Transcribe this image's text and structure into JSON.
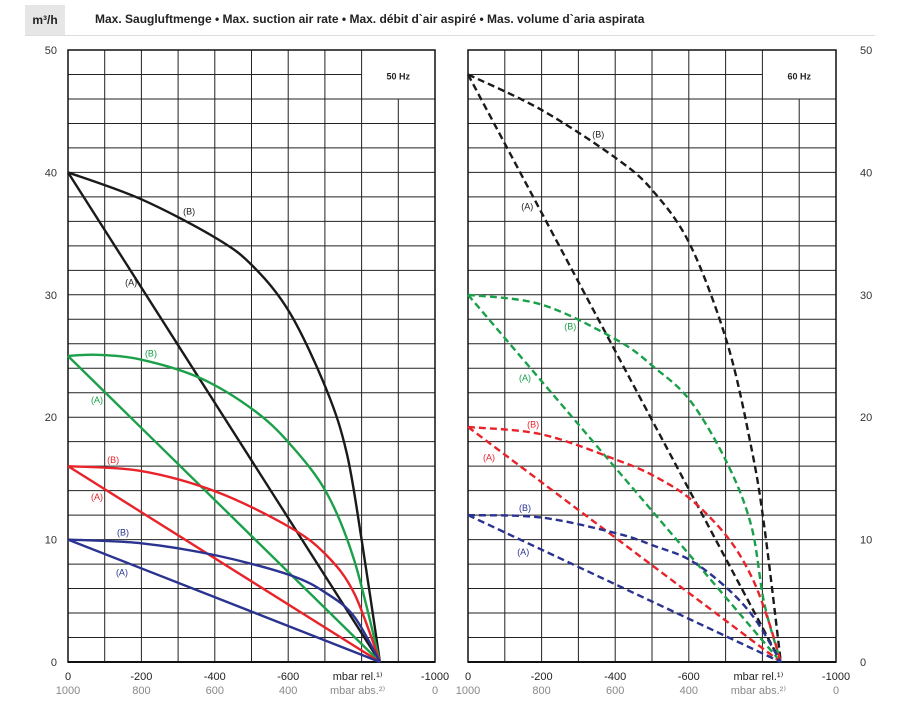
{
  "header": {
    "unit": "m³/h",
    "title": "Max. Saugluftmenge  •  Max. suction air rate  •  Max. débit d`air aspiré  •  Mas. volume d`aria aspirata"
  },
  "colors": {
    "black": "#1a1a1a",
    "green": "#1ba04a",
    "red": "#e8232a",
    "blue": "#2a3490"
  },
  "chart_data": [
    {
      "type": "line",
      "title": "50 Hz",
      "ylabel": "m³/h",
      "xlim": [
        0,
        -1000
      ],
      "ylim": [
        0,
        50
      ],
      "yticks": [
        "0",
        "10",
        "20",
        "30",
        "40",
        "50"
      ],
      "xticks_rel": [
        "0",
        "-200",
        "-400",
        "-600",
        "mbar rel.¹⁾",
        "-1000"
      ],
      "xticks_abs": [
        "1000",
        "800",
        "600",
        "400",
        "mbar abs.²⁾",
        "0"
      ],
      "grid": true,
      "line_style": "solid",
      "series": [
        {
          "name": "(A)",
          "color": "black",
          "x": [
            0,
            -850
          ],
          "y": [
            40,
            0
          ],
          "label_at": [
            -172,
            31
          ]
        },
        {
          "name": "(B)",
          "color": "black",
          "x": [
            0,
            -200,
            -405,
            -505,
            -605,
            -705,
            -760,
            -800,
            -850
          ],
          "y": [
            40,
            37.8,
            34.6,
            32.3,
            28.5,
            22.2,
            17,
            10,
            0
          ],
          "label_at": [
            -330,
            36.8
          ]
        },
        {
          "name": "(A)",
          "color": "green",
          "x": [
            0,
            -850
          ],
          "y": [
            25,
            0
          ],
          "label_at": [
            -79,
            21.4
          ]
        },
        {
          "name": "(B)",
          "color": "green",
          "x": [
            0,
            -80,
            -200,
            -360,
            -505,
            -605,
            -705,
            -780,
            -850
          ],
          "y": [
            25,
            25.1,
            24.7,
            23.2,
            20.6,
            17.8,
            13.8,
            8.3,
            0
          ],
          "label_at": [
            -226,
            25.2
          ]
        },
        {
          "name": "(A)",
          "color": "red",
          "x": [
            0,
            -850
          ],
          "y": [
            16,
            0
          ],
          "label_at": [
            -79,
            13.5
          ]
        },
        {
          "name": "(B)",
          "color": "red",
          "x": [
            0,
            -200,
            -405,
            -605,
            -705,
            -780,
            -850
          ],
          "y": [
            16,
            15.6,
            13.9,
            11,
            8.7,
            5.6,
            0
          ],
          "label_at": [
            -123,
            16.5
          ]
        },
        {
          "name": "(A)",
          "color": "blue",
          "x": [
            0,
            -850
          ],
          "y": [
            10,
            0
          ],
          "label_at": [
            -147,
            7.3
          ]
        },
        {
          "name": "(B)",
          "color": "blue",
          "x": [
            0,
            -200,
            -405,
            -605,
            -705,
            -780,
            -850
          ],
          "y": [
            10,
            9.7,
            8.7,
            7.1,
            5.6,
            3.7,
            0
          ],
          "label_at": [
            -150,
            10.6
          ]
        }
      ]
    },
    {
      "type": "line",
      "title": "60 Hz",
      "ylabel": "m³/h",
      "xlim": [
        0,
        -1000
      ],
      "ylim": [
        0,
        50
      ],
      "yticks": [
        "0",
        "10",
        "20",
        "30",
        "40",
        "50"
      ],
      "xticks_rel": [
        "0",
        "-200",
        "-400",
        "-600",
        "mbar rel.¹⁾",
        "-1000"
      ],
      "xticks_abs": [
        "1000",
        "800",
        "600",
        "400",
        "mbar abs.²⁾",
        "0"
      ],
      "grid": true,
      "line_style": "dashed",
      "series": [
        {
          "name": "(A)",
          "color": "black",
          "x": [
            0,
            -850
          ],
          "y": [
            48,
            0
          ],
          "label_at": [
            -161,
            37.2
          ]
        },
        {
          "name": "(B)",
          "color": "black",
          "x": [
            0,
            -200,
            -405,
            -505,
            -605,
            -705,
            -770,
            -805,
            -850
          ],
          "y": [
            48,
            45.1,
            41.1,
            38.4,
            34,
            26,
            17.5,
            11.1,
            0
          ],
          "label_at": [
            -354,
            43.1
          ]
        },
        {
          "name": "(A)",
          "color": "green",
          "x": [
            0,
            -850
          ],
          "y": [
            30,
            0
          ],
          "label_at": [
            -155,
            23.2
          ]
        },
        {
          "name": "(B)",
          "color": "green",
          "x": [
            0,
            -200,
            -405,
            -505,
            -605,
            -705,
            -770,
            -805,
            -850
          ],
          "y": [
            30,
            29.2,
            26.3,
            24.1,
            21.3,
            16.2,
            11.1,
            4.8,
            0
          ],
          "label_at": [
            -278,
            27.4
          ]
        },
        {
          "name": "(A)",
          "color": "red",
          "x": [
            0,
            -850
          ],
          "y": [
            19.2,
            0
          ],
          "label_at": [
            -57,
            16.7
          ]
        },
        {
          "name": "(B)",
          "color": "red",
          "x": [
            0,
            -200,
            -405,
            -505,
            -605,
            -705,
            -770,
            -815,
            -850
          ],
          "y": [
            19.2,
            18.6,
            16.5,
            15.2,
            13.3,
            10.2,
            7,
            3.5,
            0
          ],
          "label_at": [
            -177,
            19.4
          ]
        },
        {
          "name": "(A)",
          "color": "blue",
          "x": [
            0,
            -850
          ],
          "y": [
            12,
            0
          ],
          "label_at": [
            -150,
            9
          ]
        },
        {
          "name": "(B)",
          "color": "blue",
          "x": [
            0,
            -200,
            -405,
            -505,
            -605,
            -705,
            -780,
            -850
          ],
          "y": [
            12,
            11.8,
            10.5,
            9.5,
            8.3,
            6,
            3.5,
            0
          ],
          "label_at": [
            -155,
            12.6
          ]
        }
      ]
    }
  ]
}
